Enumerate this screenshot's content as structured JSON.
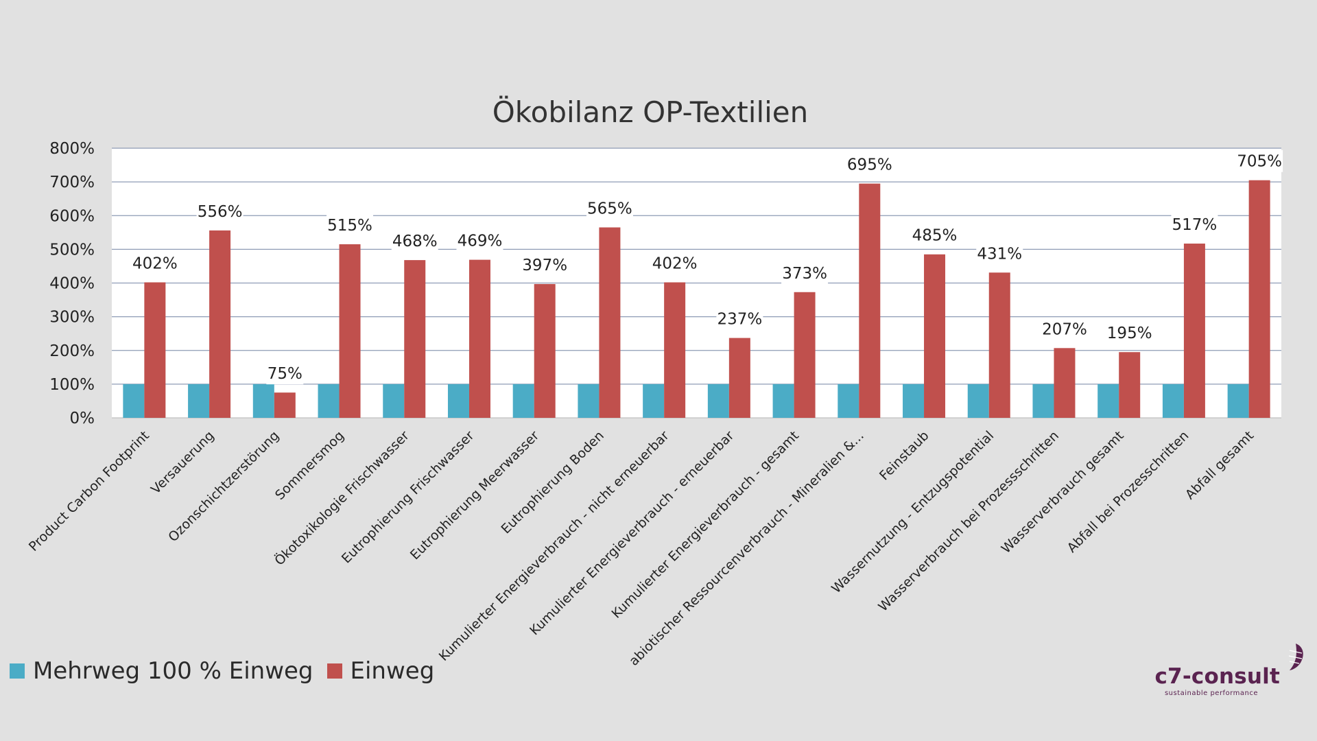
{
  "colors": {
    "mehrweg": "#4bacc6",
    "einweg": "#c0504d",
    "brand": "#5a2350"
  },
  "legend": {
    "mehrweg_label": "Mehrweg 100 % Einweg",
    "einweg_label": "Einweg"
  },
  "logo": {
    "name": "c7-consult",
    "tagline": "sustainable performance"
  },
  "chart_data": {
    "type": "bar",
    "title": "Ökobilanz OP-Textilien",
    "xlabel": "",
    "ylabel": "",
    "ylim": [
      0,
      800
    ],
    "yticks": [
      "0%",
      "100%",
      "200%",
      "300%",
      "400%",
      "500%",
      "600%",
      "700%",
      "800%"
    ],
    "grid": true,
    "legend_position": "bottom-left",
    "categories": [
      "Product Carbon Footprint",
      "Versauerung",
      "Ozonschichtzerstörung",
      "Sommersmog",
      "Ökotoxikologie Frischwasser",
      "Eutrophierung Frischwasser",
      "Eutrophierung Meerwasser",
      "Eutrophierung Boden",
      "Kumulierter Energieverbrauch - nicht erneuerbar",
      "Kumulierter Energieverbrauch - erneuerbar",
      "Kumulierter Energieverbrauch - gesamt",
      "abiotischer Ressourcenverbrauch - Mineralien &...",
      "Feinstaub",
      "Wassernutzung - Entzugspotential",
      "Wasserverbrauch bei Prozessschritten",
      "Wasserverbrauch gesamt",
      "Abfall bei Prozesschritten",
      "Abfall gesamt"
    ],
    "series": [
      {
        "name": "Mehrweg 100 % Einweg",
        "values": [
          100,
          100,
          100,
          100,
          100,
          100,
          100,
          100,
          100,
          100,
          100,
          100,
          100,
          100,
          100,
          100,
          100,
          100
        ]
      },
      {
        "name": "Einweg",
        "values": [
          402,
          556,
          75,
          515,
          468,
          469,
          397,
          565,
          402,
          237,
          373,
          695,
          485,
          431,
          207,
          195,
          517,
          705
        ],
        "labels": [
          "402%",
          "556%",
          "75%",
          "515%",
          "468%",
          "469%",
          "397%",
          "565%",
          "402%",
          "237%",
          "373%",
          "695%",
          "485%",
          "431%",
          "207%",
          "195%",
          "517%",
          "705%"
        ]
      }
    ]
  }
}
